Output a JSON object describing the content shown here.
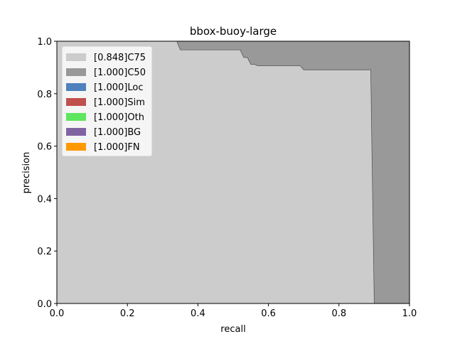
{
  "chart_data": {
    "type": "area",
    "title": "bbox-buoy-large",
    "xlabel": "recall",
    "ylabel": "precision",
    "xlim": [
      0,
      1
    ],
    "ylim": [
      0,
      1
    ],
    "xticks": [
      "0.0",
      "0.2",
      "0.4",
      "0.6",
      "0.8",
      "1.0"
    ],
    "yticks": [
      "0.0",
      "0.2",
      "0.4",
      "0.6",
      "0.8",
      "1.0"
    ],
    "legend_position": "top-left",
    "series": [
      {
        "name": "[1.000]FN",
        "color": "#ff9900",
        "curve": [
          [
            0,
            1
          ],
          [
            1,
            1
          ],
          [
            1,
            0
          ],
          [
            0,
            0
          ]
        ]
      },
      {
        "name": "[1.000]BG",
        "color": "#8064a2",
        "curve": [
          [
            0,
            1
          ],
          [
            1,
            1
          ],
          [
            1,
            0
          ],
          [
            0,
            0
          ]
        ]
      },
      {
        "name": "[1.000]Oth",
        "color": "#5ee65e",
        "curve": [
          [
            0,
            1
          ],
          [
            1,
            1
          ],
          [
            1,
            0
          ],
          [
            0,
            0
          ]
        ]
      },
      {
        "name": "[1.000]Sim",
        "color": "#c0504d",
        "curve": [
          [
            0,
            1
          ],
          [
            1,
            1
          ],
          [
            1,
            0
          ],
          [
            0,
            0
          ]
        ]
      },
      {
        "name": "[1.000]Loc",
        "color": "#4f81bd",
        "curve": [
          [
            0,
            1
          ],
          [
            1,
            1
          ],
          [
            1,
            0
          ],
          [
            0,
            0
          ]
        ]
      },
      {
        "name": "[1.000]C50",
        "color": "#999999",
        "curve": [
          [
            0,
            1
          ],
          [
            1,
            1
          ],
          [
            1,
            0
          ],
          [
            0,
            0
          ]
        ]
      },
      {
        "name": "[0.848]C75",
        "color": "#cccccc",
        "curve": [
          [
            0,
            1
          ],
          [
            0.34,
            1
          ],
          [
            0.35,
            0.967
          ],
          [
            0.52,
            0.967
          ],
          [
            0.53,
            0.938
          ],
          [
            0.54,
            0.938
          ],
          [
            0.55,
            0.912
          ],
          [
            0.56,
            0.912
          ],
          [
            0.57,
            0.906
          ],
          [
            0.69,
            0.906
          ],
          [
            0.7,
            0.891
          ],
          [
            0.89,
            0.891
          ],
          [
            0.9,
            0
          ]
        ]
      }
    ]
  }
}
